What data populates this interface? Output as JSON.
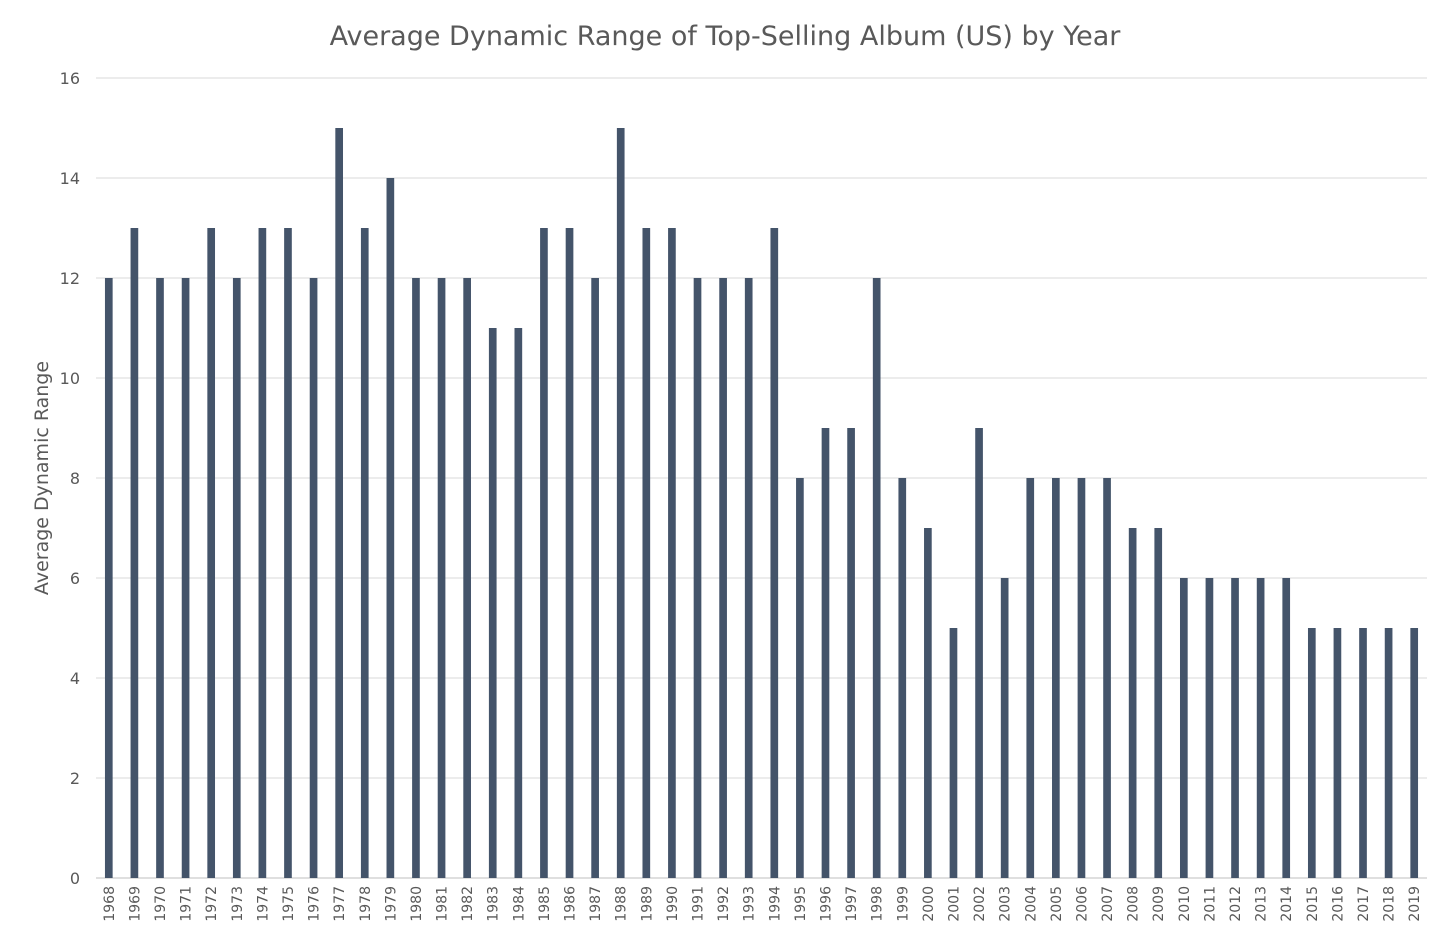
{
  "chart_data": {
    "type": "bar",
    "title": "Average Dynamic Range of Top-Selling Album (US) by Year",
    "xlabel": "",
    "ylabel": "Average Dynamic Range",
    "ylim": [
      0,
      16
    ],
    "yticks": [
      0,
      2,
      4,
      6,
      8,
      10,
      12,
      14,
      16
    ],
    "grid": true,
    "legend": "none",
    "bar_color": "#44546a",
    "categories": [
      "1968",
      "1969",
      "1970",
      "1971",
      "1972",
      "1973",
      "1974",
      "1975",
      "1976",
      "1977",
      "1978",
      "1979",
      "1980",
      "1981",
      "1982",
      "1983",
      "1984",
      "1985",
      "1986",
      "1987",
      "1988",
      "1989",
      "1990",
      "1991",
      "1992",
      "1993",
      "1994",
      "1995",
      "1996",
      "1997",
      "1998",
      "1999",
      "2000",
      "2001",
      "2002",
      "2003",
      "2004",
      "2005",
      "2006",
      "2007",
      "2008",
      "2009",
      "2010",
      "2011",
      "2012",
      "2013",
      "2014",
      "2015",
      "2016",
      "2017",
      "2018",
      "2019"
    ],
    "values": [
      12,
      13,
      12,
      12,
      13,
      12,
      13,
      13,
      12,
      15,
      13,
      14,
      12,
      12,
      12,
      11,
      11,
      13,
      13,
      12,
      15,
      13,
      13,
      12,
      12,
      12,
      13,
      8,
      9,
      9,
      12,
      8,
      7,
      5,
      9,
      6,
      8,
      8,
      8,
      8,
      7,
      7,
      6,
      6,
      6,
      6,
      6,
      5,
      5,
      5,
      5,
      5
    ]
  }
}
